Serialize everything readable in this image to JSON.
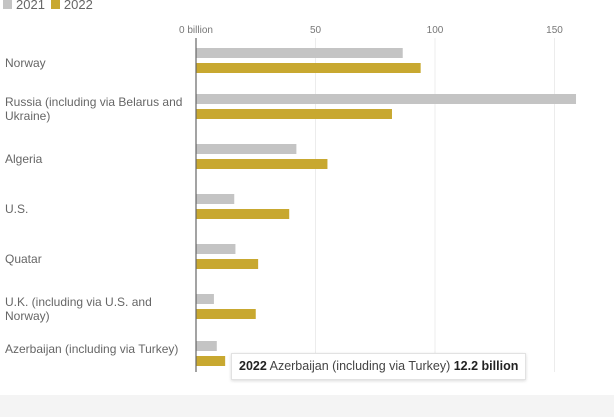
{
  "chart_data": {
    "type": "bar",
    "orientation": "horizontal",
    "categories": [
      "Norway",
      "Russia (including via Belarus and Ukraine)",
      "Algeria",
      "U.S.",
      "Quatar",
      "U.K. (including via U.S. and Norway)",
      "Azerbaijan (including via Turkey)"
    ],
    "series": [
      {
        "name": "2021",
        "color": "#c4c4c4",
        "values": [
          86.5,
          159,
          42,
          16,
          16.5,
          7.5,
          8.7
        ]
      },
      {
        "name": "2022",
        "color": "#c8a830",
        "values": [
          94,
          82,
          55,
          39,
          26,
          25,
          12.2
        ]
      }
    ],
    "xlim": [
      0,
      165
    ],
    "xticks": [
      0,
      50,
      100,
      150
    ],
    "xtick_labels": [
      "0 billion",
      "50",
      "100",
      "150"
    ],
    "grid": true,
    "legend": "top-left",
    "tooltip": {
      "year": "2022",
      "category": "Azerbaijan (including via Turkey)",
      "value": "12.2 billion"
    }
  }
}
